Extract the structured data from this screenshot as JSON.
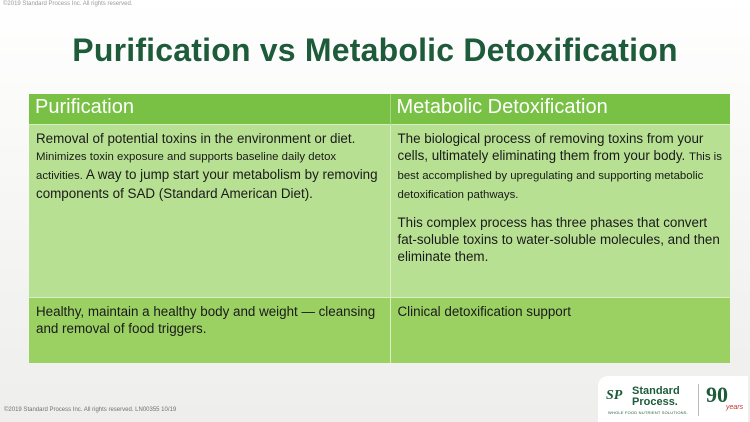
{
  "copyright_top": "©2019 Standard Process Inc. All rights reserved.",
  "title": "Purification vs Metabolic Detoxification",
  "table": {
    "headers": [
      "Purification",
      "Metabolic Detoxification"
    ],
    "row1": {
      "purification": {
        "lead": "Removal of potential toxins in the environment or diet.",
        "small": "Minimizes toxin exposure and supports baseline daily detox activities.",
        "tail": "A way to jump start your metabolism by removing components of SAD (Standard American Diet)."
      },
      "metabolic": {
        "lead": "The biological process of removing toxins from your cells, ultimately eliminating them from your body.",
        "small": "This is best accomplished by upregulating and supporting metabolic detoxification pathways.",
        "para2": "This complex process has three phases that convert fat-soluble toxins to water-soluble molecules, and then eliminate them."
      }
    },
    "row2": {
      "purification": "Healthy, maintain a healthy body and weight — cleansing and removal of food triggers.",
      "metabolic": "Clinical detoxification support"
    }
  },
  "footer": {
    "copyright": "©2019 Standard Process Inc. All rights reserved. LN00355 10/19",
    "logo": {
      "mark": "SP",
      "name_line1": "Standard",
      "name_line2": "Process.",
      "tagline": "WHOLE FOOD NUTRIENT SOLUTIONS.",
      "anniversary_number": "90",
      "anniversary_word": "years"
    }
  }
}
